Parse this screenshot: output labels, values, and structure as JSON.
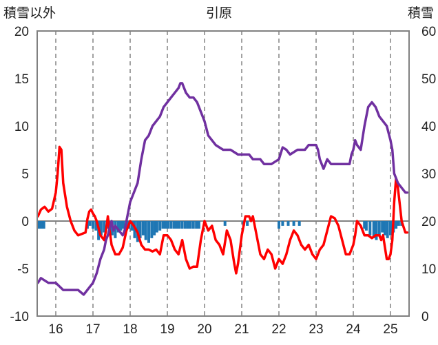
{
  "chart_data": {
    "type": "line",
    "title": "引原",
    "ylabel_left": "積雪以外",
    "ylabel_right": "積雪",
    "y_left_range": [
      -10,
      20
    ],
    "y_left_ticks": [
      "20",
      "15",
      "10",
      "5",
      "0",
      "-5",
      "-10"
    ],
    "y_right_range": [
      0,
      60
    ],
    "y_right_ticks": [
      "60",
      "50",
      "40",
      "30",
      "20",
      "10",
      "0"
    ],
    "x_range": [
      15.5,
      25.5
    ],
    "x_ticks": [
      "16",
      "17",
      "18",
      "19",
      "20",
      "21",
      "22",
      "23",
      "24",
      "25"
    ],
    "grid": "dashed vertical at x ticks, solid horizontal at 0",
    "colors": {
      "red_series": "#ff0000",
      "purple_series": "#7030a0",
      "bars": "#1f77b4",
      "zero_line": "#808080"
    },
    "series": [
      {
        "axis": "left",
        "color": "#ff0000",
        "x": [
          15.52,
          15.6,
          15.7,
          15.8,
          15.9,
          16.0,
          16.05,
          16.1,
          16.15,
          16.2,
          16.3,
          16.4,
          16.5,
          16.6,
          16.8,
          16.85,
          16.9,
          16.95,
          17.0,
          17.05,
          17.1,
          17.2,
          17.3,
          17.35,
          17.4,
          17.5,
          17.6,
          17.7,
          17.8,
          17.9,
          18.0,
          18.1,
          18.2,
          18.3,
          18.4,
          18.5,
          18.6,
          18.7,
          18.8,
          18.9,
          19.0,
          19.1,
          19.2,
          19.3,
          19.4,
          19.5,
          19.6,
          19.7,
          19.8,
          19.9,
          19.95,
          20.0,
          20.1,
          20.2,
          20.3,
          20.4,
          20.5,
          20.6,
          20.7,
          20.8,
          20.85,
          20.9,
          21.0,
          21.1,
          21.2,
          21.25,
          21.3,
          21.4,
          21.5,
          21.6,
          21.7,
          21.8,
          21.9,
          22.0,
          22.1,
          22.2,
          22.3,
          22.4,
          22.5,
          22.6,
          22.7,
          22.8,
          22.9,
          23.0,
          23.1,
          23.2,
          23.3,
          23.4,
          23.5,
          23.6,
          23.7,
          23.8,
          23.9,
          24.0,
          24.05,
          24.1,
          24.2,
          24.3,
          24.4,
          24.5,
          24.6,
          24.7,
          24.75,
          24.8,
          24.9,
          24.95,
          25.0,
          25.05,
          25.1,
          25.15,
          25.2,
          25.3,
          25.4,
          25.45
        ],
        "y": [
          0.5,
          1.2,
          1.5,
          1.0,
          1.3,
          3.0,
          5.0,
          7.8,
          7.5,
          4.0,
          1.5,
          0.0,
          -1.0,
          -1.5,
          -1.2,
          0.2,
          1.0,
          1.2,
          0.8,
          0.5,
          0.0,
          -1.5,
          -2.0,
          -1.0,
          0.5,
          -2.5,
          -3.5,
          -3.5,
          -2.8,
          -1.0,
          0.0,
          -0.5,
          -1.2,
          -2.5,
          -3.0,
          -3.0,
          -3.2,
          -3.0,
          -3.5,
          -1.5,
          -1.5,
          -2.0,
          -3.0,
          -3.5,
          -2.0,
          -4.0,
          -5.0,
          -4.8,
          -4.8,
          -2.0,
          -1.0,
          0.0,
          -1.0,
          -0.5,
          -2.0,
          -2.5,
          -3.5,
          -1.0,
          -2.0,
          -4.5,
          -5.5,
          -4.5,
          -1.5,
          0.5,
          0.5,
          0.0,
          0.5,
          -1.5,
          -3.5,
          -4.0,
          -3.0,
          -3.5,
          -5.0,
          -4.0,
          -4.5,
          -3.5,
          -2.0,
          -1.0,
          -1.5,
          -2.5,
          -3.0,
          -2.5,
          -3.5,
          -4.0,
          -3.0,
          -2.5,
          -1.0,
          0.5,
          0.3,
          -0.5,
          -2.0,
          -3.5,
          -3.5,
          -2.5,
          -1.5,
          0.0,
          -0.5,
          -1.5,
          -1.5,
          -1.8,
          -1.5,
          -1.5,
          -2.0,
          -1.5,
          -4.0,
          -4.0,
          -3.5,
          -2.0,
          2.0,
          4.5,
          3.5,
          0.0,
          -1.2,
          -1.2
        ]
      },
      {
        "axis": "right",
        "color": "#7030a0",
        "x": [
          15.52,
          15.6,
          15.8,
          16.0,
          16.2,
          16.4,
          16.6,
          16.75,
          16.8,
          16.9,
          17.0,
          17.1,
          17.2,
          17.3,
          17.35,
          17.4,
          17.5,
          17.55,
          17.6,
          17.7,
          17.8,
          17.85,
          17.9,
          18.0,
          18.1,
          18.2,
          18.3,
          18.35,
          18.4,
          18.5,
          18.6,
          18.7,
          18.8,
          18.9,
          19.0,
          19.1,
          19.2,
          19.3,
          19.35,
          19.4,
          19.5,
          19.6,
          19.7,
          19.8,
          19.9,
          20.0,
          20.1,
          20.2,
          20.3,
          20.5,
          20.7,
          20.9,
          21.0,
          21.1,
          21.2,
          21.3,
          21.4,
          21.5,
          21.6,
          21.8,
          22.0,
          22.1,
          22.2,
          22.3,
          22.5,
          22.6,
          22.7,
          22.8,
          22.9,
          23.0,
          23.05,
          23.1,
          23.2,
          23.3,
          23.4,
          23.5,
          23.7,
          23.9,
          23.95,
          24.0,
          24.05,
          24.1,
          24.2,
          24.3,
          24.4,
          24.5,
          24.6,
          24.7,
          24.8,
          24.9,
          25.0,
          25.05,
          25.1,
          25.2,
          25.3,
          25.4,
          25.45
        ],
        "y": [
          7.0,
          8.0,
          7.0,
          7.0,
          5.5,
          5.5,
          5.5,
          4.5,
          5.0,
          6.0,
          7.0,
          9.0,
          12.0,
          14.0,
          16.0,
          17.0,
          20.0,
          18.0,
          19.0,
          18.0,
          17.0,
          18.0,
          20.0,
          24.0,
          26.0,
          28.0,
          33.0,
          35.0,
          37.0,
          38.0,
          40.0,
          41.0,
          42.0,
          44.0,
          45.0,
          46.0,
          47.0,
          48.0,
          49.0,
          49.0,
          47.0,
          46.0,
          46.0,
          45.0,
          43.0,
          41.0,
          38.0,
          37.0,
          36.0,
          35.0,
          35.0,
          34.0,
          34.0,
          34.0,
          34.0,
          33.0,
          33.0,
          33.0,
          32.0,
          32.0,
          33.0,
          35.5,
          35.0,
          34.0,
          35.0,
          35.0,
          35.0,
          36.0,
          36.0,
          36.0,
          35.0,
          33.0,
          31.0,
          33.0,
          32.0,
          32.0,
          32.0,
          32.0,
          34.0,
          35.0,
          37.0,
          36.0,
          35.0,
          40.0,
          44.0,
          45.0,
          44.0,
          42.0,
          41.0,
          40.0,
          37.0,
          35.0,
          30.0,
          28.0,
          27.0,
          26.0,
          26.0
        ]
      }
    ],
    "bars": {
      "axis": "left",
      "color": "#1f77b4",
      "x": [
        15.55,
        15.62,
        15.68,
        16.85,
        16.92,
        17.0,
        17.08,
        17.15,
        17.22,
        17.3,
        17.38,
        17.45,
        17.52,
        17.6,
        17.68,
        17.75,
        17.82,
        17.9,
        17.97,
        18.05,
        18.12,
        18.2,
        18.27,
        18.35,
        18.42,
        18.5,
        18.58,
        18.65,
        18.72,
        18.8,
        18.88,
        18.95,
        19.02,
        19.1,
        19.18,
        19.25,
        19.32,
        19.4,
        19.48,
        19.55,
        19.62,
        19.7,
        19.78,
        19.85,
        20.55,
        21.05,
        21.15,
        22.0,
        22.1,
        22.25,
        22.4,
        22.55,
        24.3,
        24.35,
        24.45,
        24.55,
        24.62,
        24.7,
        24.78,
        24.85,
        24.92,
        25.0,
        25.08,
        25.15,
        25.22,
        25.3
      ],
      "y": [
        -0.8,
        -0.8,
        -0.8,
        -0.8,
        -0.5,
        -0.8,
        -1.0,
        -2.0,
        -1.5,
        -1.2,
        -0.8,
        -1.0,
        -1.5,
        -1.8,
        -1.2,
        -1.0,
        -0.8,
        -0.8,
        -0.8,
        -1.0,
        -1.8,
        -2.2,
        -1.8,
        -1.5,
        -2.0,
        -2.3,
        -1.8,
        -1.5,
        -1.2,
        -1.0,
        -0.8,
        -0.8,
        -0.8,
        -0.8,
        -0.8,
        -0.8,
        -0.8,
        -0.8,
        -0.8,
        -0.8,
        -0.8,
        -0.8,
        -0.8,
        -0.8,
        -0.5,
        -0.5,
        -0.5,
        -0.8,
        -0.5,
        -0.5,
        -0.5,
        -0.5,
        -0.8,
        -1.0,
        -1.5,
        -1.8,
        -2.0,
        -1.5,
        -1.2,
        -1.5,
        -1.8,
        -1.5,
        -1.2,
        -0.8,
        -0.5,
        -0.5
      ]
    }
  }
}
